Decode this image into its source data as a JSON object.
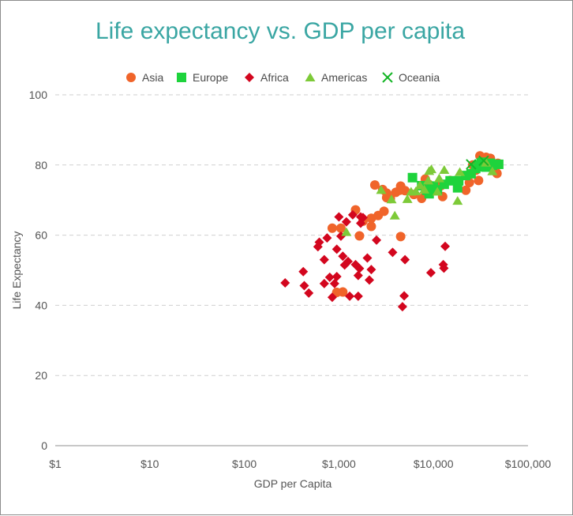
{
  "colors": {
    "title": "#3aa6a3",
    "asia": "#f0642a",
    "europe": "#1ed33c",
    "africa": "#d3061e",
    "americas": "#7dca38",
    "oceania": "#15b526",
    "gridline": "#cfcfcf",
    "axis": "#c8c8c8"
  },
  "chart_data": {
    "type": "scatter",
    "title": "Life expectancy vs. GDP per capita",
    "xlabel": "GDP per Capita",
    "ylabel": "Life Expectancy",
    "x_scale": "log10",
    "xlim": [
      1,
      100000
    ],
    "ylim": [
      0,
      100
    ],
    "x_ticks": [
      {
        "value": 1,
        "label": "$1"
      },
      {
        "value": 10,
        "label": "$10"
      },
      {
        "value": 100,
        "label": "$100"
      },
      {
        "value": 1000,
        "label": "$1,000"
      },
      {
        "value": 10000,
        "label": "$10,000"
      },
      {
        "value": 100000,
        "label": "$100,000"
      }
    ],
    "y_ticks": [
      0,
      20,
      40,
      60,
      80,
      100
    ],
    "grid": "horizontal dashed",
    "legend_position": "top-center",
    "series": [
      {
        "name": "Asia",
        "marker": "circle",
        "color": "#f0642a",
        "points": [
          [
            1500,
            67.2
          ],
          [
            1650,
            59.8
          ],
          [
            1050,
            62.0
          ],
          [
            1800,
            64.0
          ],
          [
            850,
            62.0
          ],
          [
            2200,
            62.5
          ],
          [
            2600,
            65.6
          ],
          [
            2200,
            64.8
          ],
          [
            3000,
            66.8
          ],
          [
            2400,
            74.3
          ],
          [
            2900,
            73.0
          ],
          [
            3200,
            72.0
          ],
          [
            3500,
            70.4
          ],
          [
            3200,
            70.7
          ],
          [
            4000,
            72.2
          ],
          [
            4500,
            74.0
          ],
          [
            4400,
            72.8
          ],
          [
            5000,
            72.7
          ],
          [
            4500,
            59.6
          ],
          [
            6200,
            71.6
          ],
          [
            7500,
            70.5
          ],
          [
            8200,
            76.0
          ],
          [
            8900,
            74.5
          ],
          [
            10000,
            73.5
          ],
          [
            11000,
            72.8
          ],
          [
            12000,
            74.1
          ],
          [
            12500,
            71.0
          ],
          [
            15000,
            75.6
          ],
          [
            17000,
            75.5
          ],
          [
            22000,
            72.8
          ],
          [
            24000,
            75.0
          ],
          [
            26000,
            80.0
          ],
          [
            28000,
            78.5
          ],
          [
            30000,
            75.6
          ],
          [
            31000,
            82.6
          ],
          [
            33000,
            81.0
          ],
          [
            36000,
            82.2
          ],
          [
            40000,
            81.9
          ],
          [
            45000,
            79.0
          ],
          [
            47000,
            77.6
          ],
          [
            48000,
            80.5
          ],
          [
            39000,
            80.3
          ],
          [
            42000,
            80.1
          ],
          [
            1100,
            43.8
          ],
          [
            950,
            43.7
          ]
        ]
      },
      {
        "name": "Europe",
        "marker": "square",
        "color": "#1ed33c",
        "points": [
          [
            6000,
            76.4
          ],
          [
            7500,
            74.1
          ],
          [
            8500,
            72.8
          ],
          [
            9000,
            71.8
          ],
          [
            9500,
            73.4
          ],
          [
            10000,
            74.0
          ],
          [
            11000,
            72.9
          ],
          [
            13000,
            74.5
          ],
          [
            15000,
            75.5
          ],
          [
            18000,
            73.5
          ],
          [
            18500,
            75.5
          ],
          [
            22000,
            77.0
          ],
          [
            25000,
            77.5
          ],
          [
            28000,
            79.0
          ],
          [
            30000,
            80.0
          ],
          [
            32000,
            80.6
          ],
          [
            33000,
            80.8
          ],
          [
            35000,
            79.5
          ],
          [
            36000,
            79.4
          ],
          [
            38000,
            80.0
          ],
          [
            40000,
            80.5
          ],
          [
            42000,
            79.9
          ],
          [
            49000,
            80.2
          ]
        ]
      },
      {
        "name": "Africa",
        "marker": "diamond",
        "color": "#d3061e",
        "points": [
          [
            270,
            46.4
          ],
          [
            420,
            49.6
          ],
          [
            430,
            45.6
          ],
          [
            480,
            43.5
          ],
          [
            600,
            56.7
          ],
          [
            620,
            58.0
          ],
          [
            700,
            53.0
          ],
          [
            750,
            59.2
          ],
          [
            700,
            46.2
          ],
          [
            800,
            48.0
          ],
          [
            850,
            42.3
          ],
          [
            900,
            46.2
          ],
          [
            950,
            48.2
          ],
          [
            950,
            56.0
          ],
          [
            1000,
            65.2
          ],
          [
            1050,
            59.7
          ],
          [
            1100,
            54.0
          ],
          [
            1150,
            51.5
          ],
          [
            1200,
            63.8
          ],
          [
            1250,
            52.5
          ],
          [
            1300,
            42.6
          ],
          [
            1400,
            65.8
          ],
          [
            1500,
            51.6
          ],
          [
            1600,
            48.5
          ],
          [
            1600,
            42.6
          ],
          [
            1700,
            63.4
          ],
          [
            1650,
            50.5
          ],
          [
            2000,
            53.5
          ],
          [
            2100,
            47.2
          ],
          [
            2200,
            50.2
          ],
          [
            2500,
            58.6
          ],
          [
            3700,
            55.1
          ],
          [
            4700,
            39.6
          ],
          [
            4900,
            42.7
          ],
          [
            5000,
            53.0
          ],
          [
            9400,
            49.3
          ],
          [
            12700,
            51.6
          ],
          [
            12900,
            50.6
          ],
          [
            13300,
            56.8
          ],
          [
            1700,
            65.2
          ],
          [
            1800,
            65.0
          ]
        ]
      },
      {
        "name": "Americas",
        "marker": "triangle",
        "color": "#7dca38",
        "points": [
          [
            1200,
            60.9
          ],
          [
            2800,
            72.9
          ],
          [
            3600,
            70.2
          ],
          [
            3900,
            65.6
          ],
          [
            5300,
            70.3
          ],
          [
            5800,
            72.4
          ],
          [
            6500,
            72.5
          ],
          [
            7200,
            74.2
          ],
          [
            8000,
            73.0
          ],
          [
            8800,
            75.6
          ],
          [
            9000,
            78.3
          ],
          [
            9500,
            78.8
          ],
          [
            11000,
            72.4
          ],
          [
            11500,
            76.2
          ],
          [
            13000,
            78.6
          ],
          [
            18000,
            69.8
          ],
          [
            19000,
            78.0
          ],
          [
            36000,
            80.7
          ],
          [
            42000,
            78.2
          ]
        ]
      },
      {
        "name": "Oceania",
        "marker": "cross",
        "color": "#15b526",
        "points": [
          [
            25000,
            80.2
          ],
          [
            34000,
            81.2
          ]
        ]
      }
    ]
  }
}
